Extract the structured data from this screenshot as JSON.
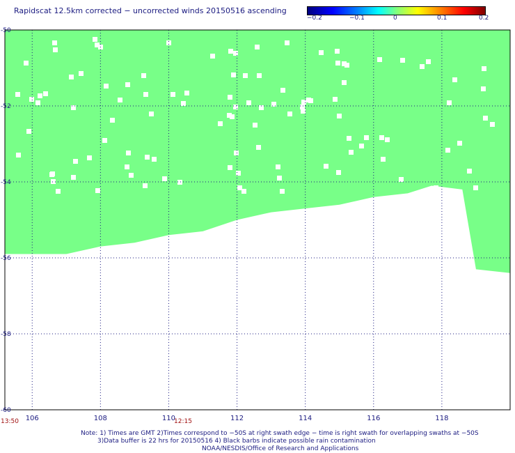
{
  "title": "Rapidscat 12.5km corrected − uncorrected winds 20150516 ascending",
  "colorbar": {
    "labels": [
      "−0.2",
      "−0.1",
      "0",
      "0.1",
      "0.2"
    ],
    "range": [
      -0.2,
      0.2
    ]
  },
  "swath_color": "#78ff88",
  "chart_data": {
    "type": "heatmap",
    "xlabel": "",
    "ylabel": "",
    "xlim": [
      105.2,
      120
    ],
    "ylim": [
      -60,
      -50
    ],
    "x_ticks": [
      "106",
      "108",
      "110",
      "112",
      "114",
      "116",
      "118"
    ],
    "y_ticks": [
      "-50",
      "-52",
      "-54",
      "-56",
      "-58",
      "-60"
    ],
    "swath_bottom_edge": [
      {
        "lon": 105.2,
        "lat": -55.9
      },
      {
        "lon": 107.0,
        "lat": -55.9
      },
      {
        "lon": 108.0,
        "lat": -55.7
      },
      {
        "lon": 109.0,
        "lat": -55.6
      },
      {
        "lon": 110.0,
        "lat": -55.4
      },
      {
        "lon": 111.0,
        "lat": -55.3
      },
      {
        "lon": 112.0,
        "lat": -55.0
      },
      {
        "lon": 113.0,
        "lat": -54.8
      },
      {
        "lon": 114.0,
        "lat": -54.7
      },
      {
        "lon": 115.0,
        "lat": -54.6
      },
      {
        "lon": 116.0,
        "lat": -54.4
      },
      {
        "lon": 117.0,
        "lat": -54.3
      },
      {
        "lon": 117.7,
        "lat": -54.1
      },
      {
        "lon": 118.6,
        "lat": -54.2
      },
      {
        "lon": 119.0,
        "lat": -56.3
      },
      {
        "lon": 120.0,
        "lat": -56.4
      }
    ]
  },
  "times": [
    {
      "label": "13:50",
      "lon": 105.2
    },
    {
      "label": "12:15",
      "lon": 110.1
    }
  ],
  "notes": [
    "Note: 1) Times are GMT 2)Times correspond to −50S at right swath edge − time is right swath for overlapping swaths at −50S",
    "3)Data buffer is 22 hrs for 20150516 4) Black barbs indicate possible rain contamination",
    "NOAA/NESDIS/Office of Research and Applications"
  ]
}
